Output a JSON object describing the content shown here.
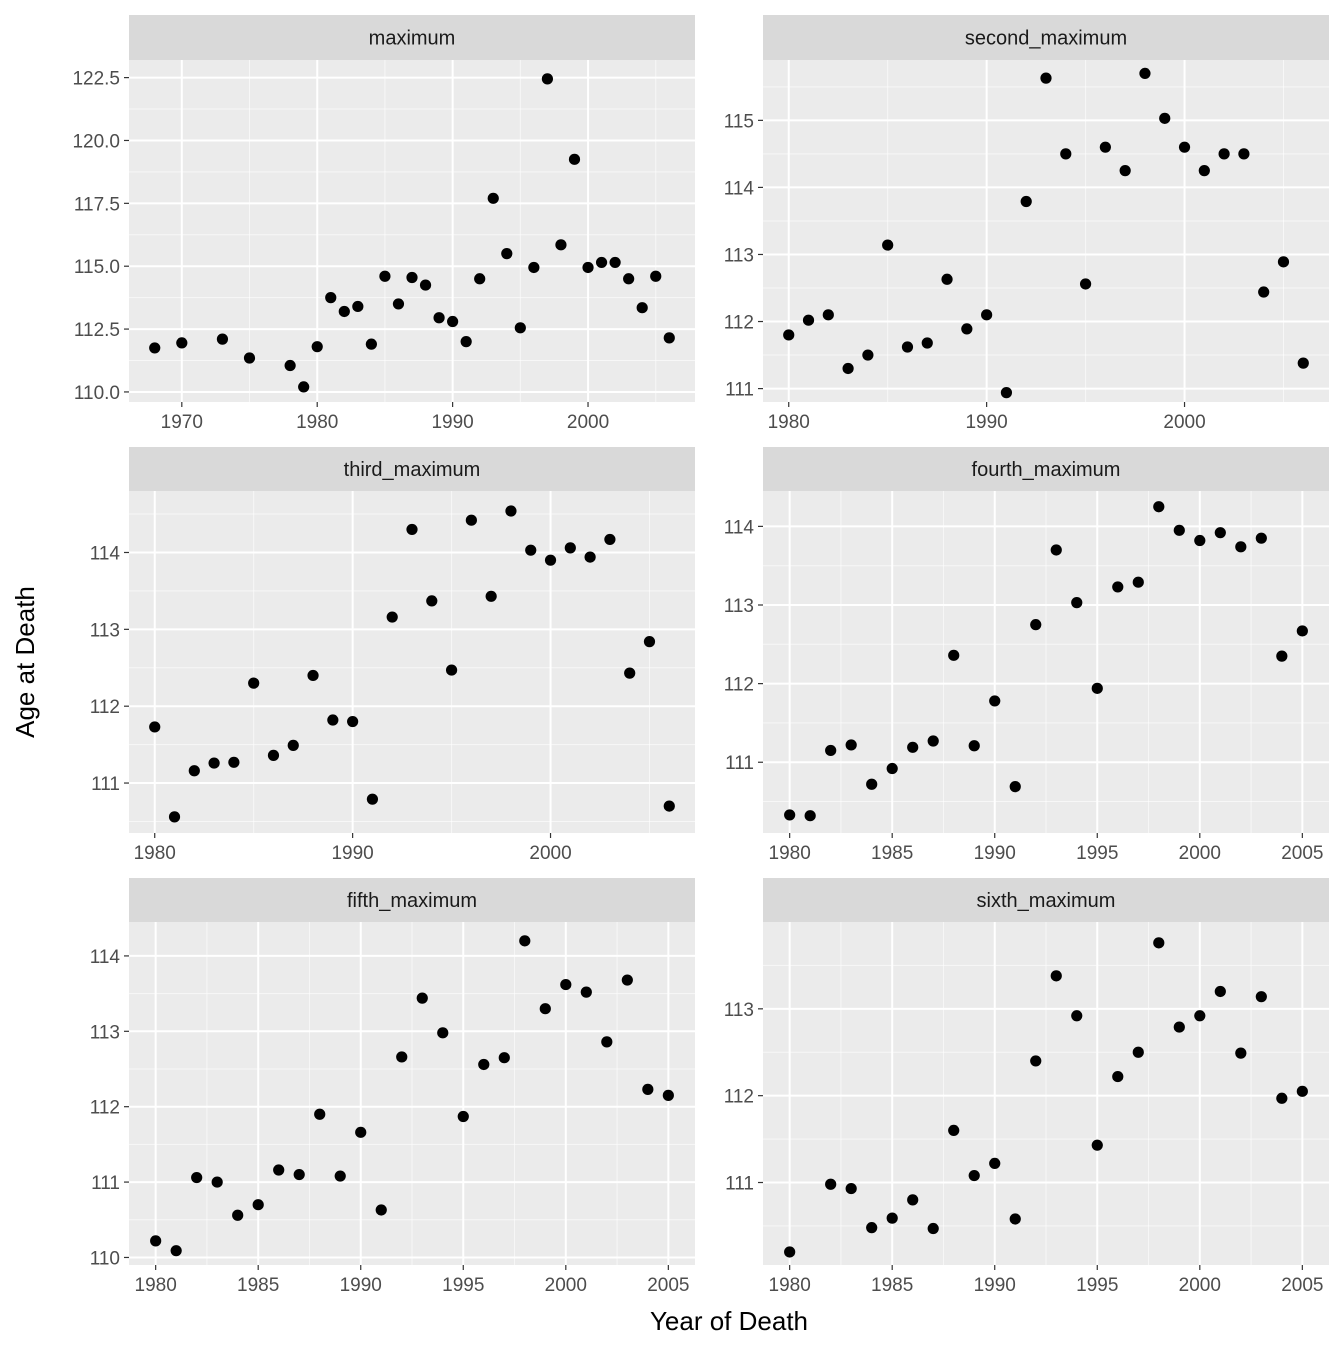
{
  "figure": {
    "xlabel": "Year of Death",
    "ylabel": "Age at Death",
    "panel_bg": "#ebebeb",
    "strip_bg": "#d9d9d9",
    "grid_color": "#ffffff",
    "point_color": "#000000"
  },
  "chart_data": [
    {
      "type": "scatter",
      "title": "maximum",
      "xlim": [
        1966.1,
        2007.9
      ],
      "ylim": [
        109.6,
        123.2
      ],
      "xticks": [
        1970,
        1980,
        1990,
        2000
      ],
      "yticks": [
        110.0,
        112.5,
        115.0,
        117.5,
        120.0,
        122.5
      ],
      "ytick_labels": [
        "110.0",
        "112.5",
        "115.0",
        "117.5",
        "120.0",
        "122.5"
      ],
      "x": [
        1968,
        1970,
        1973,
        1975,
        1978,
        1979,
        1980,
        1981,
        1982,
        1983,
        1984,
        1985,
        1986,
        1987,
        1988,
        1989,
        1990,
        1991,
        1992,
        1993,
        1994,
        1995,
        1996,
        1997,
        1998,
        1999,
        2000,
        2001,
        2002,
        2003,
        2004,
        2005,
        2006
      ],
      "y": [
        111.75,
        111.95,
        112.1,
        111.35,
        111.05,
        110.2,
        111.8,
        113.75,
        113.2,
        113.4,
        111.9,
        114.6,
        113.5,
        114.55,
        114.25,
        112.95,
        112.8,
        112.0,
        114.5,
        117.7,
        115.5,
        112.55,
        114.95,
        122.45,
        115.85,
        119.25,
        114.95,
        115.15,
        115.15,
        114.5,
        113.35,
        114.6,
        112.15
      ]
    },
    {
      "type": "scatter",
      "title": "second_maximum",
      "xlim": [
        1978.7,
        2007.3
      ],
      "ylim": [
        110.8,
        115.9
      ],
      "xticks": [
        1980,
        1990,
        2000
      ],
      "yticks": [
        111,
        112,
        113,
        114,
        115
      ],
      "ytick_labels": [
        "111",
        "112",
        "113",
        "114",
        "115"
      ],
      "x": [
        1980,
        1981,
        1982,
        1983,
        1984,
        1985,
        1986,
        1987,
        1988,
        1989,
        1990,
        1991,
        1992,
        1993,
        1994,
        1995,
        1996,
        1997,
        1998,
        1999,
        2000,
        2001,
        2002,
        2003,
        2004,
        2005,
        2006
      ],
      "y": [
        111.8,
        112.02,
        112.1,
        111.3,
        111.5,
        113.14,
        111.62,
        111.68,
        112.63,
        111.89,
        112.1,
        110.94,
        113.79,
        115.63,
        114.5,
        112.56,
        114.6,
        114.25,
        115.7,
        115.03,
        114.6,
        114.25,
        114.5,
        114.5,
        112.44,
        112.89,
        111.38
      ]
    },
    {
      "type": "scatter",
      "title": "third_maximum",
      "xlim": [
        1978.7,
        2007.3
      ],
      "ylim": [
        110.35,
        114.8
      ],
      "xticks": [
        1980,
        1990,
        2000
      ],
      "yticks": [
        111,
        112,
        113,
        114
      ],
      "ytick_labels": [
        "111",
        "112",
        "113",
        "114"
      ],
      "x": [
        1980,
        1981,
        1982,
        1983,
        1984,
        1985,
        1986,
        1987,
        1988,
        1989,
        1990,
        1991,
        1992,
        1993,
        1994,
        1995,
        1996,
        1997,
        1998,
        1999,
        2000,
        2001,
        2002,
        2003,
        2004,
        2005,
        2006
      ],
      "y": [
        111.73,
        110.56,
        111.16,
        111.26,
        111.27,
        112.3,
        111.36,
        111.49,
        112.4,
        111.82,
        111.8,
        110.79,
        113.16,
        114.3,
        113.37,
        112.47,
        114.42,
        113.43,
        114.54,
        114.03,
        113.9,
        114.06,
        113.94,
        114.17,
        112.43,
        112.84,
        110.7
      ]
    },
    {
      "type": "scatter",
      "title": "fourth_maximum",
      "xlim": [
        1978.7,
        2006.3
      ],
      "ylim": [
        110.1,
        114.45
      ],
      "xticks": [
        1980,
        1985,
        1990,
        1995,
        2000,
        2005
      ],
      "yticks": [
        111,
        112,
        113,
        114
      ],
      "ytick_labels": [
        "111",
        "112",
        "113",
        "114"
      ],
      "x": [
        1980,
        1981,
        1982,
        1983,
        1984,
        1985,
        1986,
        1987,
        1988,
        1989,
        1990,
        1991,
        1992,
        1993,
        1994,
        1995,
        1996,
        1997,
        1998,
        1999,
        2000,
        2001,
        2002,
        2003,
        2004,
        2005
      ],
      "y": [
        110.33,
        110.32,
        111.15,
        111.22,
        110.72,
        110.92,
        111.19,
        111.27,
        112.36,
        111.21,
        111.78,
        110.69,
        112.75,
        113.7,
        113.03,
        111.94,
        113.23,
        113.29,
        114.25,
        113.95,
        113.82,
        113.92,
        113.74,
        113.85,
        112.35,
        112.67
      ]
    },
    {
      "type": "scatter",
      "title": "fifth_maximum",
      "xlim": [
        1978.7,
        2006.3
      ],
      "ylim": [
        109.9,
        114.45
      ],
      "xticks": [
        1980,
        1985,
        1990,
        1995,
        2000,
        2005
      ],
      "yticks": [
        110,
        111,
        112,
        113,
        114
      ],
      "ytick_labels": [
        "110",
        "111",
        "112",
        "113",
        "114"
      ],
      "x": [
        1980,
        1981,
        1982,
        1983,
        1984,
        1985,
        1986,
        1987,
        1988,
        1989,
        1990,
        1991,
        1992,
        1993,
        1994,
        1995,
        1996,
        1997,
        1998,
        1999,
        2000,
        2001,
        2002,
        2003,
        2004,
        2005
      ],
      "y": [
        110.22,
        110.09,
        111.06,
        111.0,
        110.56,
        110.7,
        111.16,
        111.1,
        111.9,
        111.08,
        111.66,
        110.63,
        112.66,
        113.44,
        112.98,
        111.87,
        112.56,
        112.65,
        114.2,
        113.3,
        113.62,
        113.52,
        112.86,
        113.68,
        112.23,
        112.15
      ]
    },
    {
      "type": "scatter",
      "title": "sixth_maximum",
      "xlim": [
        1978.7,
        2006.3
      ],
      "ylim": [
        110.05,
        114.0
      ],
      "xticks": [
        1980,
        1985,
        1990,
        1995,
        2000,
        2005
      ],
      "yticks": [
        111,
        112,
        113
      ],
      "ytick_labels": [
        "111",
        "112",
        "113"
      ],
      "x": [
        1980,
        1982,
        1983,
        1984,
        1985,
        1986,
        1987,
        1988,
        1989,
        1990,
        1991,
        1992,
        1993,
        1994,
        1995,
        1996,
        1997,
        1998,
        1999,
        2000,
        2001,
        2002,
        2003,
        2004,
        2005
      ],
      "y": [
        110.2,
        110.98,
        110.93,
        110.48,
        110.59,
        110.8,
        110.47,
        111.6,
        111.08,
        111.22,
        110.58,
        112.4,
        113.38,
        112.92,
        111.43,
        112.22,
        112.5,
        113.76,
        112.79,
        112.92,
        113.2,
        112.49,
        113.14,
        111.97,
        112.05
      ]
    }
  ]
}
